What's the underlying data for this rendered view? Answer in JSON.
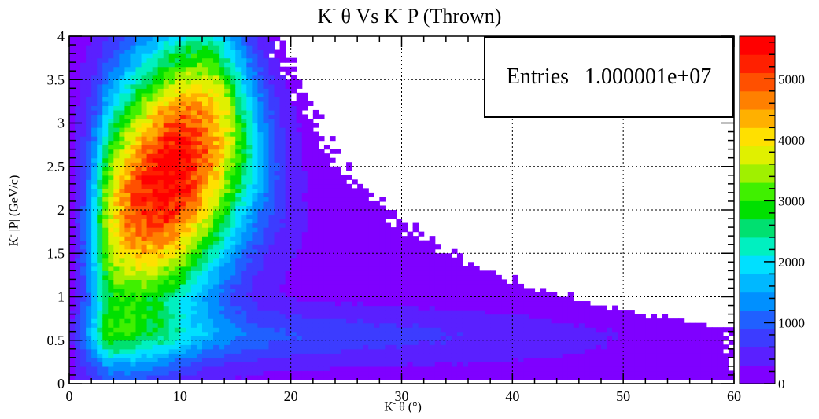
{
  "chart_data": {
    "type": "heatmap",
    "title": "K- θ Vs K- P (Thrown)",
    "xlabel": "K- θ (°)",
    "ylabel": "K- |P| (GeV/c)",
    "xlim": [
      0,
      60
    ],
    "ylim": [
      0,
      4
    ],
    "x_ticks": [
      "0",
      "10",
      "20",
      "30",
      "40",
      "50",
      "60"
    ],
    "y_ticks": [
      "0",
      "0.5",
      "1",
      "1.5",
      "2",
      "2.5",
      "3",
      "3.5",
      "4"
    ],
    "z_ticks": [
      "0",
      "1000",
      "2000",
      "3000",
      "4000",
      "5000"
    ],
    "zlim": [
      0,
      5700
    ],
    "grid": true,
    "colorbar": true,
    "stats": {
      "label": "Entries",
      "value": "1.000001e+07"
    },
    "peak": {
      "theta_deg": 9,
      "p_gev": 2.4,
      "counts": 5500
    },
    "palette": [
      "#7f00ff",
      "#5a20ff",
      "#3c3cff",
      "#2060ff",
      "#0090ff",
      "#00b8ff",
      "#00e0ff",
      "#00f0c0",
      "#00e070",
      "#00e000",
      "#40f000",
      "#a0f000",
      "#e0f000",
      "#ffe000",
      "#ffb000",
      "#ff8000",
      "#ff5000",
      "#ff2000",
      "#ff0000"
    ]
  },
  "title": {
    "pre": "K",
    "sup": "-",
    "mid": " θ Vs K",
    "sup2": "-",
    "post": " P (Thrown)"
  },
  "xlabel": {
    "pre": "K",
    "sup": "-",
    "post": " θ (°)"
  },
  "ylabel": {
    "pre": "K",
    "sup": "-",
    "post": " |P| (GeV/c)"
  },
  "stats": {
    "label": "Entries",
    "value": "1.000001e+07"
  }
}
